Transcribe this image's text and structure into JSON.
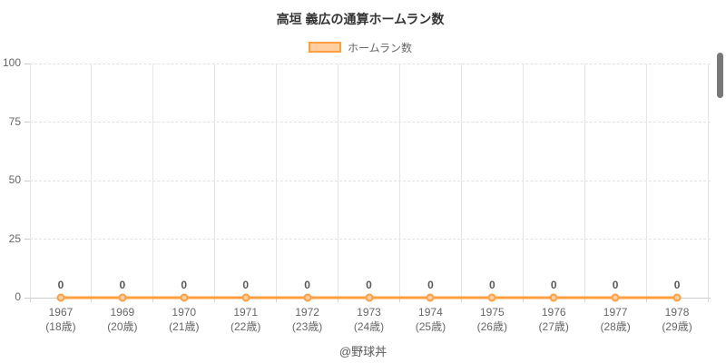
{
  "page": {
    "title": "高垣 義広の通算ホームラン数",
    "footer": "@野球丼"
  },
  "legend": {
    "label": "ホームラン数"
  },
  "colors": {
    "accent": "#ff9f40",
    "accent_light": "#ffcf9f",
    "title_text": "#333333",
    "tick_text": "#666666",
    "grid": "#e6e6e6",
    "axis_line": "#cccccc"
  },
  "chart_data": {
    "type": "line",
    "title": "高垣 義広の通算ホームラン数",
    "legend_entries": [
      "ホームラン数"
    ],
    "legend_position": "top",
    "grid": true,
    "ylim": [
      0,
      100
    ],
    "yticks": [
      0,
      25,
      50,
      75,
      100
    ],
    "categories": [
      {
        "year": "1967",
        "age": "(18歳)"
      },
      {
        "year": "1969",
        "age": "(20歳)"
      },
      {
        "year": "1970",
        "age": "(21歳)"
      },
      {
        "year": "1971",
        "age": "(22歳)"
      },
      {
        "year": "1972",
        "age": "(23歳)"
      },
      {
        "year": "1973",
        "age": "(24歳)"
      },
      {
        "year": "1974",
        "age": "(25歳)"
      },
      {
        "year": "1975",
        "age": "(26歳)"
      },
      {
        "year": "1976",
        "age": "(27歳)"
      },
      {
        "year": "1977",
        "age": "(28歳)"
      },
      {
        "year": "1978",
        "age": "(29歳)"
      }
    ],
    "series": [
      {
        "name": "ホームラン数",
        "values": [
          0,
          0,
          0,
          0,
          0,
          0,
          0,
          0,
          0,
          0,
          0
        ],
        "point_labels": [
          "0",
          "0",
          "0",
          "0",
          "0",
          "0",
          "0",
          "0",
          "0",
          "0",
          "0"
        ]
      }
    ]
  }
}
